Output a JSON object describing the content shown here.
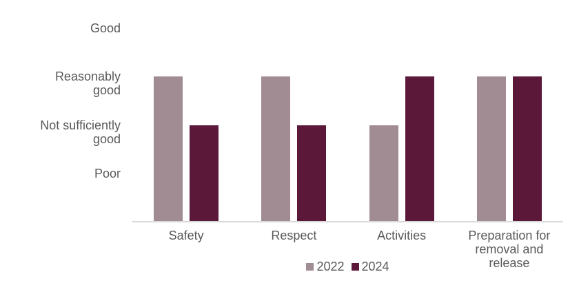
{
  "colors": {
    "series_2022": "#A18C94",
    "series_2024": "#5C1839",
    "text": "#595959",
    "axis_line": "#D9D9D9",
    "background": "#FFFFFF"
  },
  "chart_data": {
    "type": "bar",
    "title": "",
    "xlabel": "",
    "ylabel": "",
    "grid": false,
    "legend_position": "bottom",
    "ylim": [
      0,
      4
    ],
    "value_scale_note": "ordinal rating scale: 1=Poor, 2=Not sufficiently good, 3=Reasonably good, 4=Good",
    "categories": [
      {
        "label": "Safety",
        "lines": [
          "Safety"
        ]
      },
      {
        "label": "Respect",
        "lines": [
          "Respect"
        ]
      },
      {
        "label": "Activities",
        "lines": [
          "Activities"
        ]
      },
      {
        "label": "Preparation for removal and release",
        "lines": [
          "Preparation for",
          "removal and",
          "release"
        ]
      }
    ],
    "y_ticks": [
      {
        "value": 4,
        "label": "Good",
        "lines": [
          "Good"
        ]
      },
      {
        "value": 3,
        "label": "Reasonably good",
        "lines": [
          "Reasonably",
          "good"
        ]
      },
      {
        "value": 2,
        "label": "Not sufficiently good",
        "lines": [
          "Not sufficiently",
          "good"
        ]
      },
      {
        "value": 1,
        "label": "Poor",
        "lines": [
          "Poor"
        ]
      }
    ],
    "series": [
      {
        "name": "2022",
        "color": "#A18C94",
        "values": [
          3,
          3,
          2,
          3
        ],
        "value_labels": [
          "Reasonably good",
          "Reasonably good",
          "Not sufficiently good",
          "Reasonably good"
        ]
      },
      {
        "name": "2024",
        "color": "#5C1839",
        "values": [
          2,
          2,
          3,
          3
        ],
        "value_labels": [
          "Not sufficiently good",
          "Not sufficiently good",
          "Reasonably good",
          "Reasonably good"
        ]
      }
    ]
  }
}
